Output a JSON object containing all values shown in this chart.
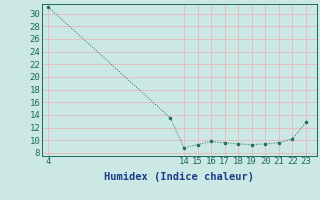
{
  "x_data": [
    4,
    13,
    14,
    15,
    16,
    17,
    18,
    19,
    20,
    21,
    22,
    23
  ],
  "y_data": [
    31,
    13.5,
    8.8,
    9.3,
    9.8,
    9.6,
    9.4,
    9.3,
    9.4,
    9.6,
    10.2,
    12.8
  ],
  "xlabel": "Humidex (Indice chaleur)",
  "xticks": [
    4,
    14,
    15,
    16,
    17,
    18,
    19,
    20,
    21,
    22,
    23
  ],
  "yticks": [
    8,
    10,
    12,
    14,
    16,
    18,
    20,
    22,
    24,
    26,
    28,
    30
  ],
  "xlim": [
    3.5,
    23.8
  ],
  "ylim": [
    7.5,
    31.5
  ],
  "bg_color": "#cce8e4",
  "grid_color": "#e8b8b8",
  "line_color": "#1a6b5a",
  "marker_color": "#1a6b5a",
  "xlabel_color": "#1a3a8a",
  "xlabel_fontsize": 7.5,
  "ytick_fontsize": 6.5,
  "xtick_fontsize": 6.5
}
